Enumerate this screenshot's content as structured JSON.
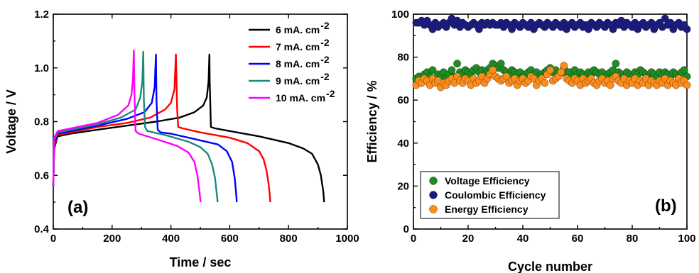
{
  "chart_data": [
    {
      "type": "line",
      "panel_label": "(a)",
      "xlabel": "Time / sec",
      "ylabel": "Voltage / V",
      "xlim": [
        0,
        1000
      ],
      "ylim": [
        0.4,
        1.2
      ],
      "xticks": [
        "0",
        "200",
        "400",
        "600",
        "800",
        "1000"
      ],
      "yticks": [
        "0.4",
        "0.6",
        "0.8",
        "1.0",
        "1.2"
      ],
      "legend_position": "top-right",
      "series": [
        {
          "name": "6 mA. cm",
          "superscript": "-2",
          "color": "#000000",
          "x": [
            0,
            3,
            15,
            60,
            150,
            250,
            350,
            430,
            480,
            510,
            522,
            528,
            531,
            532,
            536,
            550,
            600,
            700,
            800,
            850,
            880,
            900,
            910,
            918,
            921
          ],
          "y": [
            0.56,
            0.7,
            0.745,
            0.755,
            0.77,
            0.785,
            0.8,
            0.815,
            0.835,
            0.86,
            0.89,
            0.95,
            1.05,
            0.95,
            0.78,
            0.775,
            0.765,
            0.745,
            0.72,
            0.7,
            0.68,
            0.64,
            0.6,
            0.54,
            0.5
          ]
        },
        {
          "name": "7 mA. cm",
          "superscript": "-2",
          "color": "#ff0000",
          "x": [
            0,
            3,
            15,
            60,
            150,
            250,
            330,
            380,
            400,
            412,
            417,
            419,
            421,
            425,
            440,
            500,
            600,
            660,
            700,
            715,
            725,
            732,
            736,
            738
          ],
          "y": [
            0.56,
            0.71,
            0.75,
            0.76,
            0.78,
            0.795,
            0.815,
            0.845,
            0.87,
            0.92,
            1.05,
            0.95,
            0.85,
            0.78,
            0.775,
            0.76,
            0.74,
            0.72,
            0.69,
            0.66,
            0.62,
            0.57,
            0.53,
            0.5
          ]
        },
        {
          "name": "8 mA. cm",
          "superscript": "-2",
          "color": "#0000ff",
          "x": [
            0,
            3,
            15,
            60,
            150,
            250,
            310,
            335,
            345,
            349,
            351,
            355,
            365,
            400,
            480,
            560,
            590,
            608,
            617,
            622,
            624
          ],
          "y": [
            0.56,
            0.72,
            0.755,
            0.765,
            0.785,
            0.81,
            0.835,
            0.87,
            0.93,
            1.05,
            0.88,
            0.77,
            0.76,
            0.755,
            0.735,
            0.715,
            0.69,
            0.65,
            0.59,
            0.53,
            0.5
          ]
        },
        {
          "name": "9 mA. cm",
          "superscript": "-2",
          "color": "#1a8a7a",
          "x": [
            0,
            3,
            15,
            60,
            150,
            230,
            280,
            296,
            303,
            306,
            308,
            312,
            320,
            380,
            460,
            500,
            525,
            540,
            550,
            556,
            559
          ],
          "y": [
            0.56,
            0.73,
            0.76,
            0.77,
            0.79,
            0.815,
            0.845,
            0.89,
            0.95,
            1.06,
            0.88,
            0.78,
            0.765,
            0.75,
            0.725,
            0.705,
            0.68,
            0.64,
            0.59,
            0.53,
            0.5
          ]
        },
        {
          "name": "10 mA. cm",
          "superscript": "-2",
          "color": "#ff00ff",
          "x": [
            0,
            3,
            15,
            60,
            150,
            220,
            255,
            266,
            271,
            274,
            276,
            280,
            290,
            350,
            420,
            460,
            480,
            490,
            497,
            501
          ],
          "y": [
            0.56,
            0.74,
            0.765,
            0.775,
            0.795,
            0.825,
            0.86,
            0.9,
            0.96,
            1.065,
            0.9,
            0.765,
            0.755,
            0.735,
            0.71,
            0.685,
            0.65,
            0.6,
            0.54,
            0.5
          ]
        }
      ]
    },
    {
      "type": "scatter",
      "panel_label": "(b)",
      "xlabel": "Cycle number",
      "ylabel": "Efficiency / %",
      "xlim": [
        0,
        100
      ],
      "ylim": [
        0,
        100
      ],
      "xticks": [
        "0",
        "20",
        "40",
        "60",
        "80",
        "100"
      ],
      "yticks": [
        "0",
        "20",
        "40",
        "60",
        "80",
        "100"
      ],
      "legend_position": "bottom-left",
      "series": [
        {
          "name": "Voltage Efficiency",
          "color": "#1e8c1e",
          "x": [
            1,
            2,
            3,
            4,
            5,
            6,
            7,
            8,
            9,
            10,
            11,
            12,
            13,
            14,
            15,
            16,
            17,
            18,
            19,
            20,
            21,
            22,
            23,
            24,
            25,
            26,
            27,
            28,
            29,
            30,
            31,
            32,
            33,
            34,
            35,
            36,
            37,
            38,
            39,
            40,
            41,
            42,
            43,
            44,
            45,
            46,
            47,
            48,
            49,
            50,
            51,
            52,
            53,
            54,
            55,
            56,
            57,
            58,
            59,
            60,
            61,
            62,
            63,
            64,
            65,
            66,
            67,
            68,
            69,
            70,
            71,
            72,
            73,
            74,
            75,
            76,
            77,
            78,
            79,
            80,
            81,
            82,
            83,
            84,
            85,
            86,
            87,
            88,
            89,
            90,
            91,
            92,
            93,
            94,
            95,
            96,
            97,
            98,
            99,
            100
          ],
          "y": [
            70,
            71,
            69,
            72,
            73,
            71,
            74,
            70,
            72,
            71,
            73,
            70,
            72,
            74,
            71,
            77,
            73,
            72,
            74,
            73,
            72,
            74,
            75,
            73,
            74,
            72,
            74,
            75,
            77,
            76,
            75,
            77,
            74,
            73,
            72,
            74,
            73,
            72,
            73,
            71,
            72,
            73,
            74,
            72,
            73,
            71,
            72,
            73,
            74,
            75,
            73,
            74,
            72,
            73,
            75,
            72,
            73,
            71,
            74,
            72,
            73,
            72,
            71,
            73,
            72,
            74,
            73,
            72,
            73,
            71,
            72,
            73,
            74,
            77,
            73,
            72,
            71,
            73,
            72,
            71,
            73,
            72,
            74,
            73,
            72,
            71,
            73,
            72,
            71,
            73,
            72,
            73,
            72,
            71,
            73,
            72,
            71,
            73,
            74,
            71
          ]
        },
        {
          "name": "Coulombic Efficiency",
          "color": "#1a1a80",
          "x": [
            1,
            2,
            3,
            4,
            5,
            6,
            7,
            8,
            9,
            10,
            11,
            12,
            13,
            14,
            15,
            16,
            17,
            18,
            19,
            20,
            21,
            22,
            23,
            24,
            25,
            26,
            27,
            28,
            29,
            30,
            31,
            32,
            33,
            34,
            35,
            36,
            37,
            38,
            39,
            40,
            41,
            42,
            43,
            44,
            45,
            46,
            47,
            48,
            49,
            50,
            51,
            52,
            53,
            54,
            55,
            56,
            57,
            58,
            59,
            60,
            61,
            62,
            63,
            64,
            65,
            66,
            67,
            68,
            69,
            70,
            71,
            72,
            73,
            74,
            75,
            76,
            77,
            78,
            79,
            80,
            81,
            82,
            83,
            84,
            85,
            86,
            87,
            88,
            89,
            90,
            91,
            92,
            93,
            94,
            95,
            96,
            97,
            98,
            99,
            100
          ],
          "y": [
            96,
            96,
            97,
            95,
            97,
            95,
            93,
            96,
            94,
            95,
            96,
            94,
            96,
            98,
            95,
            97,
            94,
            96,
            95,
            94,
            95,
            96,
            95,
            93,
            96,
            95,
            96,
            95,
            96,
            95,
            95,
            96,
            94,
            96,
            95,
            93,
            96,
            95,
            94,
            96,
            95,
            94,
            96,
            93,
            95,
            96,
            95,
            94,
            96,
            95,
            94,
            96,
            95,
            94,
            96,
            93,
            95,
            96,
            94,
            95,
            96,
            94,
            95,
            93,
            96,
            95,
            94,
            96,
            95,
            94,
            96,
            95,
            93,
            96,
            95,
            97,
            94,
            96,
            95,
            94,
            96,
            93,
            95,
            96,
            94,
            95,
            96,
            93,
            95,
            96,
            94,
            98,
            95,
            96,
            93,
            95,
            96,
            94,
            95,
            93
          ]
        },
        {
          "name": "Energy Efficiency",
          "color": "#ff8c1a",
          "x": [
            1,
            2,
            3,
            4,
            5,
            6,
            7,
            8,
            9,
            10,
            11,
            12,
            13,
            14,
            15,
            16,
            17,
            18,
            19,
            20,
            21,
            22,
            23,
            24,
            25,
            26,
            27,
            28,
            29,
            30,
            31,
            32,
            33,
            34,
            35,
            36,
            37,
            38,
            39,
            40,
            41,
            42,
            43,
            44,
            45,
            46,
            47,
            48,
            49,
            50,
            51,
            52,
            53,
            54,
            55,
            56,
            57,
            58,
            59,
            60,
            61,
            62,
            63,
            64,
            65,
            66,
            67,
            68,
            69,
            70,
            71,
            72,
            73,
            74,
            75,
            76,
            77,
            78,
            79,
            80,
            81,
            82,
            83,
            84,
            85,
            86,
            87,
            88,
            89,
            90,
            91,
            92,
            93,
            94,
            95,
            96,
            97,
            98,
            99,
            100
          ],
          "y": [
            67,
            69,
            68,
            70,
            69,
            67,
            70,
            68,
            69,
            66,
            68,
            67,
            69,
            70,
            68,
            71,
            69,
            68,
            70,
            69,
            67,
            70,
            68,
            69,
            71,
            68,
            70,
            72,
            74,
            71,
            70,
            69,
            70,
            71,
            68,
            69,
            70,
            67,
            69,
            70,
            68,
            69,
            71,
            70,
            67,
            69,
            70,
            68,
            72,
            74,
            69,
            70,
            71,
            73,
            76,
            70,
            69,
            68,
            70,
            69,
            67,
            70,
            68,
            69,
            70,
            68,
            67,
            69,
            70,
            68,
            69,
            67,
            70,
            71,
            69,
            68,
            70,
            67,
            69,
            68,
            70,
            67,
            69,
            68,
            70,
            67,
            69,
            68,
            67,
            69,
            68,
            70,
            67,
            69,
            68,
            67,
            70,
            68,
            69,
            67
          ]
        }
      ]
    }
  ]
}
